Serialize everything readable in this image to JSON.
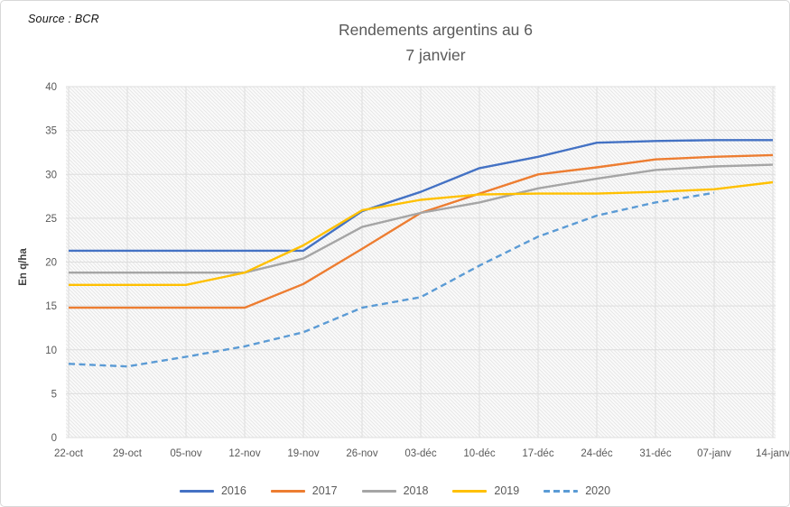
{
  "source_label": "Source : BCR",
  "chart_data": {
    "type": "line",
    "title_lines": [
      "Rendements argentins au 6",
      "7 janvier"
    ],
    "ylabel": "En q/ha",
    "xlabel": "",
    "ylim": [
      0,
      40
    ],
    "y_ticks": [
      0,
      5,
      10,
      15,
      20,
      25,
      30,
      35,
      40
    ],
    "grid": true,
    "plot_background": "diagonal-hatch",
    "legend_position": "bottom",
    "categories": [
      "22-oct",
      "29-oct",
      "05-nov",
      "12-nov",
      "19-nov",
      "26-nov",
      "03-déc",
      "10-déc",
      "17-déc",
      "24-déc",
      "31-déc",
      "07-janv",
      "14-janv"
    ],
    "series": [
      {
        "name": "2016",
        "color": "#4472C4",
        "dashed": false,
        "values": [
          21.3,
          21.3,
          21.3,
          21.3,
          21.3,
          25.8,
          28.0,
          30.7,
          32.0,
          33.6,
          33.8,
          33.9,
          33.9
        ]
      },
      {
        "name": "2017",
        "color": "#ED7D31",
        "dashed": false,
        "values": [
          14.8,
          14.8,
          14.8,
          14.8,
          17.5,
          21.5,
          25.6,
          27.8,
          30.0,
          30.8,
          31.7,
          32.0,
          32.2
        ]
      },
      {
        "name": "2018",
        "color": "#A5A5A5",
        "dashed": false,
        "values": [
          18.8,
          18.8,
          18.8,
          18.8,
          20.4,
          24.0,
          25.6,
          26.8,
          28.4,
          29.5,
          30.5,
          30.9,
          31.1
        ]
      },
      {
        "name": "2019",
        "color": "#FFC000",
        "dashed": false,
        "values": [
          17.4,
          17.4,
          17.4,
          18.8,
          21.9,
          25.9,
          27.1,
          27.7,
          27.8,
          27.8,
          28.0,
          28.3,
          29.1
        ]
      },
      {
        "name": "2020",
        "color": "#5B9BD5",
        "dashed": true,
        "values": [
          8.4,
          8.1,
          9.2,
          10.4,
          12.0,
          14.8,
          16.0,
          19.6,
          22.9,
          25.3,
          26.8,
          27.9,
          null
        ]
      }
    ],
    "axis_text_color": "#595959",
    "gridline_color": "#dedede",
    "ylabel_color": "#404040"
  }
}
